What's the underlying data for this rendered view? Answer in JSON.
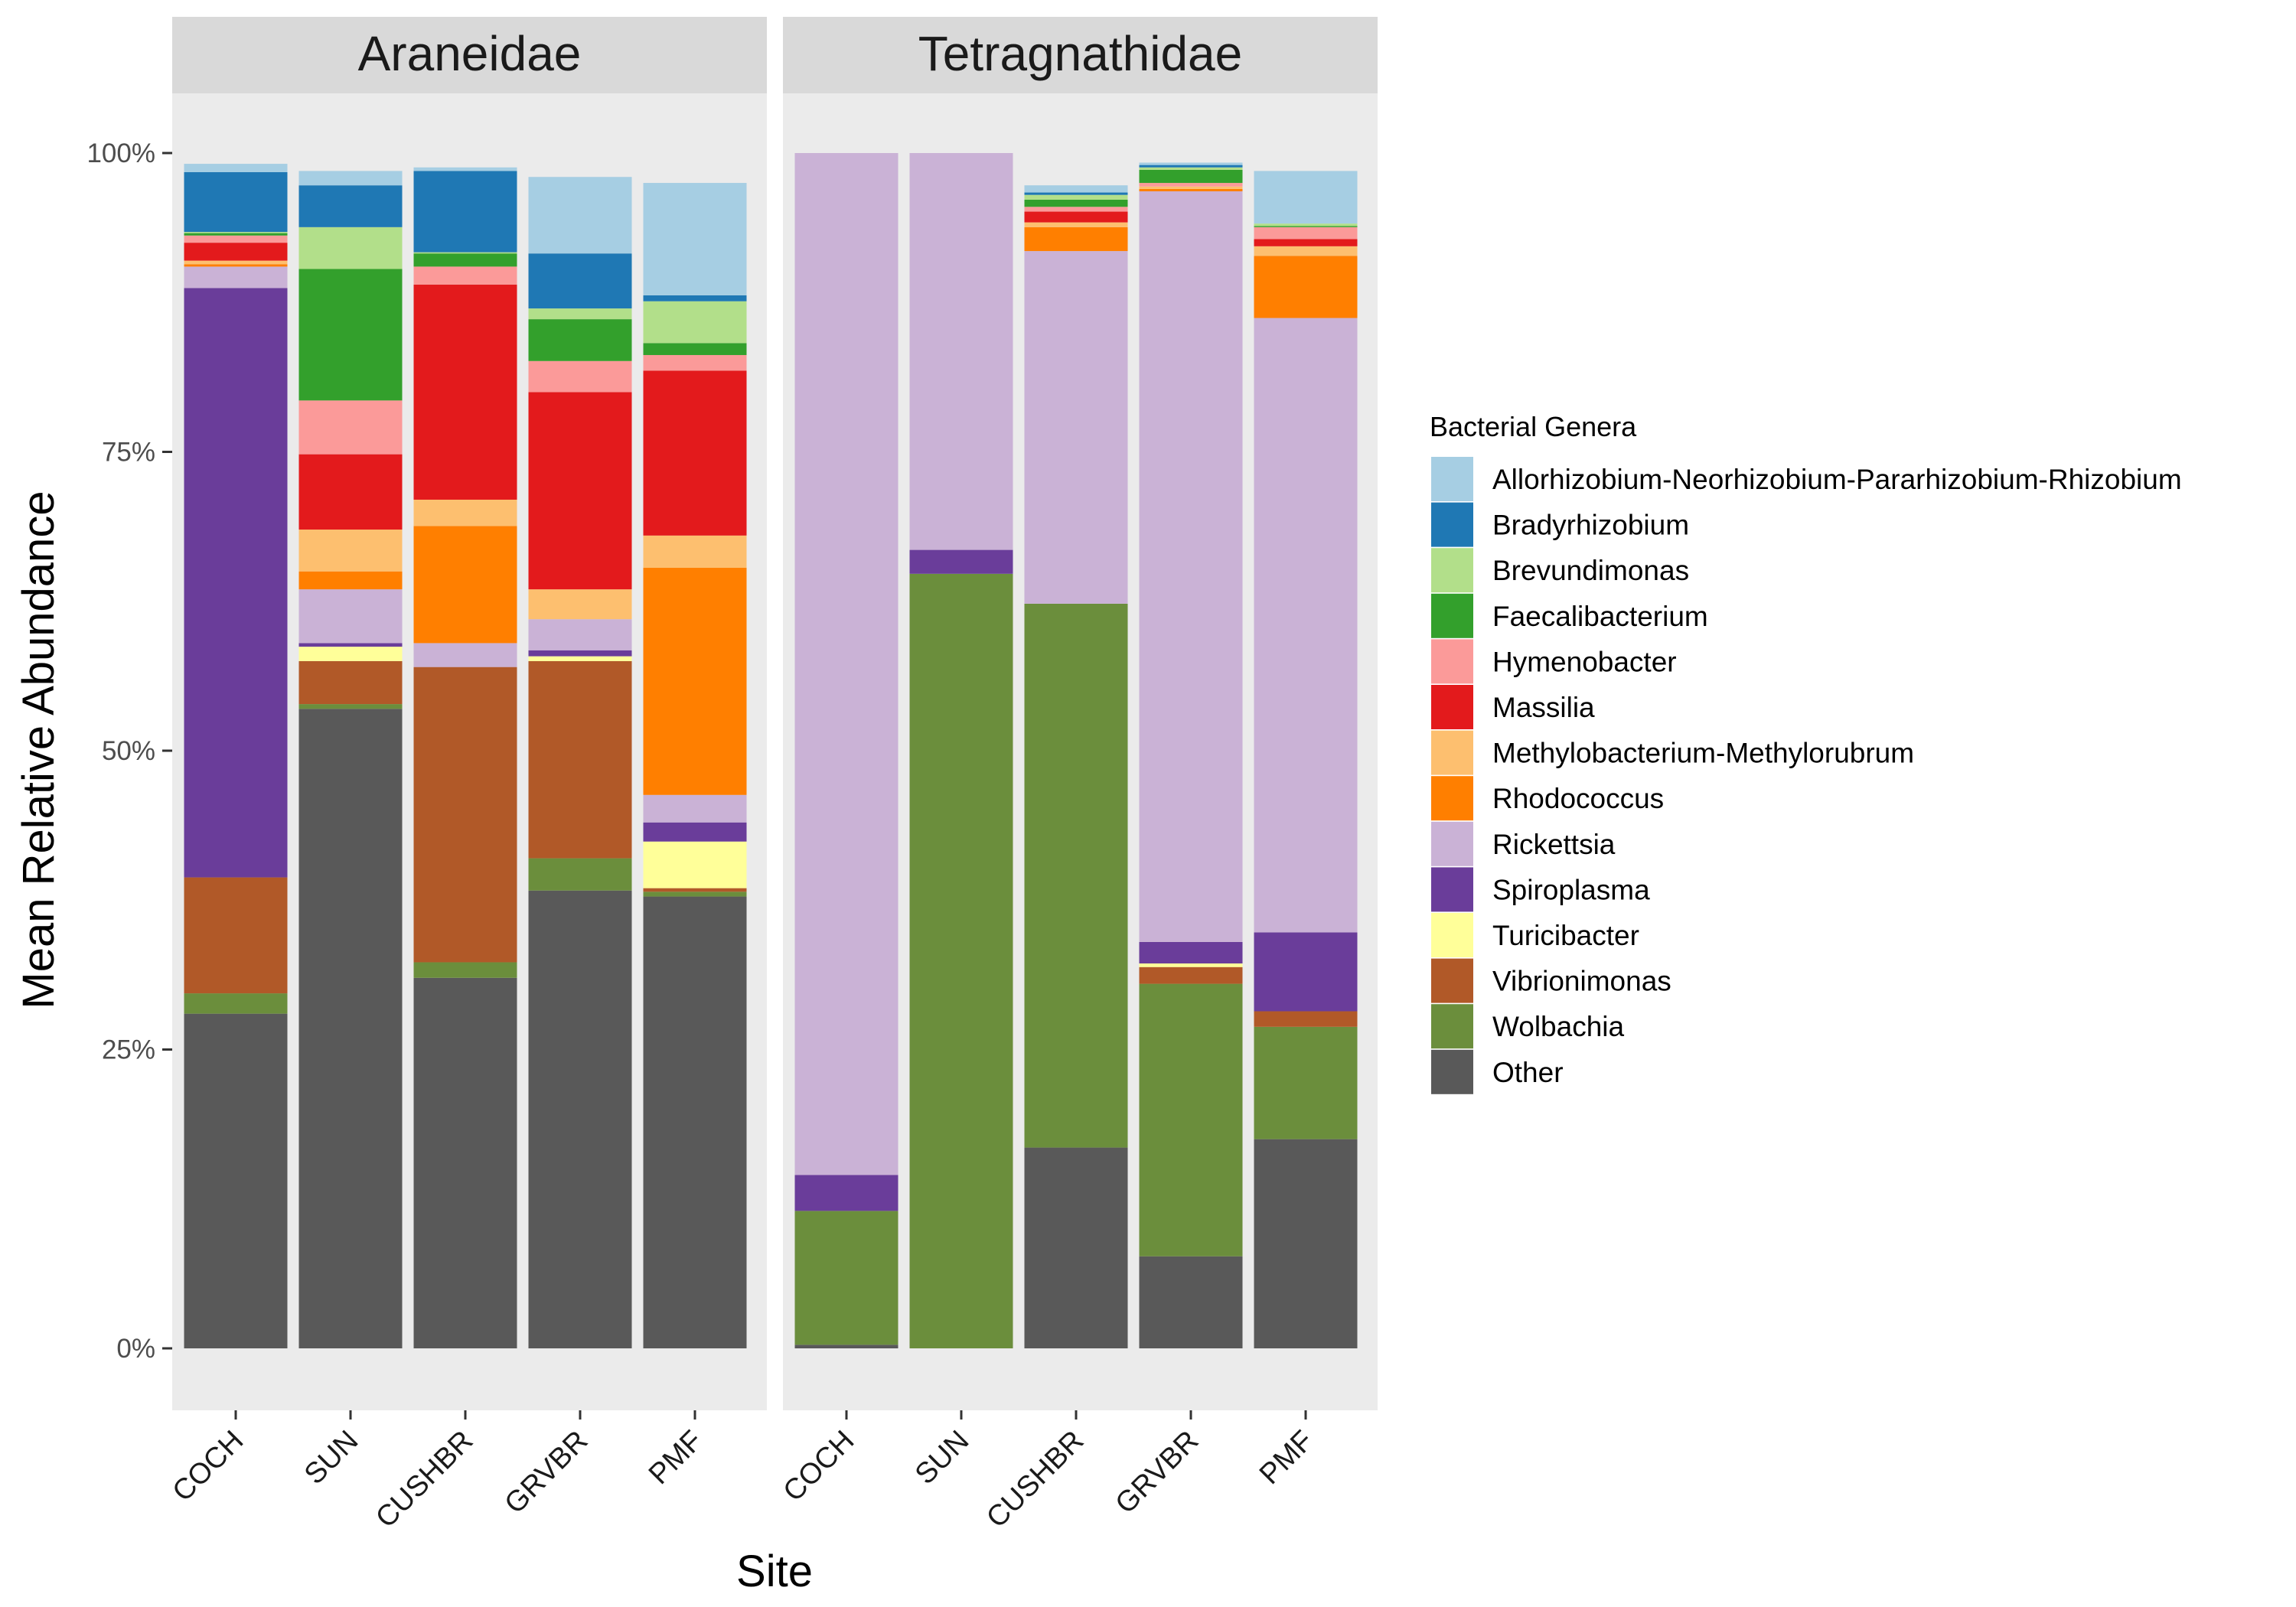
{
  "chart_data": {
    "type": "bar",
    "stacked": true,
    "xlabel": "Site",
    "ylabel": "Mean Relative Abundance",
    "ylim": [
      0,
      1.05
    ],
    "yticks": [
      0,
      0.25,
      0.5,
      0.75,
      1.0
    ],
    "ytick_labels": [
      "0%",
      "25%",
      "50%",
      "75%",
      "100%"
    ],
    "categories": [
      "COCH",
      "SUN",
      "CUSHBR",
      "GRVBR",
      "PMF"
    ],
    "grid": false,
    "panel_background": "#EBEBEB",
    "strip_background": "#D9D9D9",
    "legend": {
      "title": "Bacterial Genera",
      "position": "right",
      "order": [
        "Allorhizobium-Neorhizobium-Pararhizobium-Rhizobium",
        "Bradyrhizobium",
        "Brevundimonas",
        "Faecalibacterium",
        "Hymenobacter",
        "Massilia",
        "Methylobacterium-Methylorubrum",
        "Rhodococcus",
        "Rickettsia",
        "Spiroplasma",
        "Turicibacter",
        "Vibrionimonas",
        "Wolbachia",
        "Other"
      ]
    },
    "colors": {
      "Allorhizobium-Neorhizobium-Pararhizobium-Rhizobium": "#A6CEE3",
      "Bradyrhizobium": "#1F78B4",
      "Brevundimonas": "#B2DF8A",
      "Faecalibacterium": "#33A02C",
      "Hymenobacter": "#FB9A99",
      "Massilia": "#E31A1C",
      "Methylobacterium-Methylorubrum": "#FDBF6F",
      "Rhodococcus": "#FF7F00",
      "Rickettsia": "#CAB2D6",
      "Spiroplasma": "#6A3D9A",
      "Turicibacter": "#FFFF99",
      "Vibrionimonas": "#B15928",
      "Wolbachia": "#6B8E3C",
      "Other": "#595959"
    },
    "stack_order_bottom_to_top": [
      "Other",
      "Wolbachia",
      "Vibrionimonas",
      "Turicibacter",
      "Spiroplasma",
      "Rickettsia",
      "Rhodococcus",
      "Methylobacterium-Methylorubrum",
      "Massilia",
      "Hymenobacter",
      "Faecalibacterium",
      "Brevundimonas",
      "Bradyrhizobium",
      "Allorhizobium-Neorhizobium-Pararhizobium-Rhizobium"
    ],
    "panels": [
      {
        "name": "Araneidae",
        "bars": [
          {
            "category": "COCH",
            "values": {
              "Other": 0.28,
              "Wolbachia": 0.017,
              "Vibrionimonas": 0.097,
              "Turicibacter": 0.0,
              "Spiroplasma": 0.493,
              "Rickettsia": 0.018,
              "Rhodococcus": 0.002,
              "Methylobacterium-Methylorubrum": 0.003,
              "Massilia": 0.015,
              "Hymenobacter": 0.006,
              "Faecalibacterium": 0.002,
              "Brevundimonas": 0.001,
              "Bradyrhizobium": 0.05,
              "Allorhizobium-Neorhizobium-Pararhizobium-Rhizobium": 0.007
            }
          },
          {
            "category": "SUN",
            "values": {
              "Other": 0.535,
              "Wolbachia": 0.004,
              "Vibrionimonas": 0.036,
              "Turicibacter": 0.012,
              "Spiroplasma": 0.003,
              "Rickettsia": 0.045,
              "Rhodococcus": 0.015,
              "Methylobacterium-Methylorubrum": 0.035,
              "Massilia": 0.063,
              "Hymenobacter": 0.045,
              "Faecalibacterium": 0.11,
              "Brevundimonas": 0.035,
              "Bradyrhizobium": 0.035,
              "Allorhizobium-Neorhizobium-Pararhizobium-Rhizobium": 0.012
            }
          },
          {
            "category": "CUSHBR",
            "values": {
              "Other": 0.31,
              "Wolbachia": 0.013,
              "Vibrionimonas": 0.247,
              "Turicibacter": 0.0,
              "Spiroplasma": 0.0,
              "Rickettsia": 0.02,
              "Rhodococcus": 0.098,
              "Methylobacterium-Methylorubrum": 0.022,
              "Massilia": 0.18,
              "Hymenobacter": 0.015,
              "Faecalibacterium": 0.011,
              "Brevundimonas": 0.001,
              "Bradyrhizobium": 0.068,
              "Allorhizobium-Neorhizobium-Pararhizobium-Rhizobium": 0.003
            }
          },
          {
            "category": "GRVBR",
            "values": {
              "Other": 0.383,
              "Wolbachia": 0.027,
              "Vibrionimonas": 0.165,
              "Turicibacter": 0.004,
              "Spiroplasma": 0.005,
              "Rickettsia": 0.026,
              "Rhodococcus": 0.0,
              "Methylobacterium-Methylorubrum": 0.025,
              "Massilia": 0.165,
              "Hymenobacter": 0.026,
              "Faecalibacterium": 0.035,
              "Brevundimonas": 0.009,
              "Bradyrhizobium": 0.046,
              "Allorhizobium-Neorhizobium-Pararhizobium-Rhizobium": 0.064
            }
          },
          {
            "category": "PMF",
            "values": {
              "Other": 0.378,
              "Wolbachia": 0.004,
              "Vibrionimonas": 0.003,
              "Turicibacter": 0.039,
              "Spiroplasma": 0.016,
              "Rickettsia": 0.023,
              "Rhodococcus": 0.19,
              "Methylobacterium-Methylorubrum": 0.027,
              "Massilia": 0.138,
              "Hymenobacter": 0.013,
              "Faecalibacterium": 0.01,
              "Brevundimonas": 0.035,
              "Bradyrhizobium": 0.005,
              "Allorhizobium-Neorhizobium-Pararhizobium-Rhizobium": 0.094
            }
          }
        ]
      },
      {
        "name": "Tetragnathidae",
        "bars": [
          {
            "category": "COCH",
            "values": {
              "Other": 0.003,
              "Wolbachia": 0.112,
              "Vibrionimonas": 0.0,
              "Turicibacter": 0.0,
              "Spiroplasma": 0.03,
              "Rickettsia": 0.855,
              "Rhodococcus": 0.0,
              "Methylobacterium-Methylorubrum": 0.0,
              "Massilia": 0.0,
              "Hymenobacter": 0.0,
              "Faecalibacterium": 0.0,
              "Brevundimonas": 0.0,
              "Bradyrhizobium": 0.0,
              "Allorhizobium-Neorhizobium-Pararhizobium-Rhizobium": 0.0
            }
          },
          {
            "category": "SUN",
            "values": {
              "Other": 0.0,
              "Wolbachia": 0.648,
              "Vibrionimonas": 0.0,
              "Turicibacter": 0.0,
              "Spiroplasma": 0.02,
              "Rickettsia": 0.332,
              "Rhodococcus": 0.0,
              "Methylobacterium-Methylorubrum": 0.0,
              "Massilia": 0.0,
              "Hymenobacter": 0.0,
              "Faecalibacterium": 0.0,
              "Brevundimonas": 0.0,
              "Bradyrhizobium": 0.0,
              "Allorhizobium-Neorhizobium-Pararhizobium-Rhizobium": 0.0
            }
          },
          {
            "category": "CUSHBR",
            "values": {
              "Other": 0.168,
              "Wolbachia": 0.455,
              "Vibrionimonas": 0.0,
              "Turicibacter": 0.0,
              "Spiroplasma": 0.0,
              "Rickettsia": 0.295,
              "Rhodococcus": 0.02,
              "Methylobacterium-Methylorubrum": 0.004,
              "Massilia": 0.009,
              "Hymenobacter": 0.004,
              "Faecalibacterium": 0.006,
              "Brevundimonas": 0.004,
              "Bradyrhizobium": 0.002,
              "Allorhizobium-Neorhizobium-Pararhizobium-Rhizobium": 0.006
            }
          },
          {
            "category": "GRVBR",
            "values": {
              "Other": 0.077,
              "Wolbachia": 0.228,
              "Vibrionimonas": 0.014,
              "Turicibacter": 0.003,
              "Spiroplasma": 0.018,
              "Rickettsia": 0.628,
              "Rhodococcus": 0.002,
              "Methylobacterium-Methylorubrum": 0.002,
              "Massilia": 0.0,
              "Hymenobacter": 0.003,
              "Faecalibacterium": 0.011,
              "Brevundimonas": 0.002,
              "Bradyrhizobium": 0.002,
              "Allorhizobium-Neorhizobium-Pararhizobium-Rhizobium": 0.002
            }
          },
          {
            "category": "PMF",
            "values": {
              "Other": 0.175,
              "Wolbachia": 0.094,
              "Vibrionimonas": 0.013,
              "Turicibacter": 0.0,
              "Spiroplasma": 0.066,
              "Rickettsia": 0.514,
              "Rhodococcus": 0.052,
              "Methylobacterium-Methylorubrum": 0.008,
              "Massilia": 0.006,
              "Hymenobacter": 0.01,
              "Faecalibacterium": 0.001,
              "Brevundimonas": 0.002,
              "Bradyrhizobium": 0.0,
              "Allorhizobium-Neorhizobium-Pararhizobium-Rhizobium": 0.044
            }
          }
        ]
      }
    ]
  }
}
